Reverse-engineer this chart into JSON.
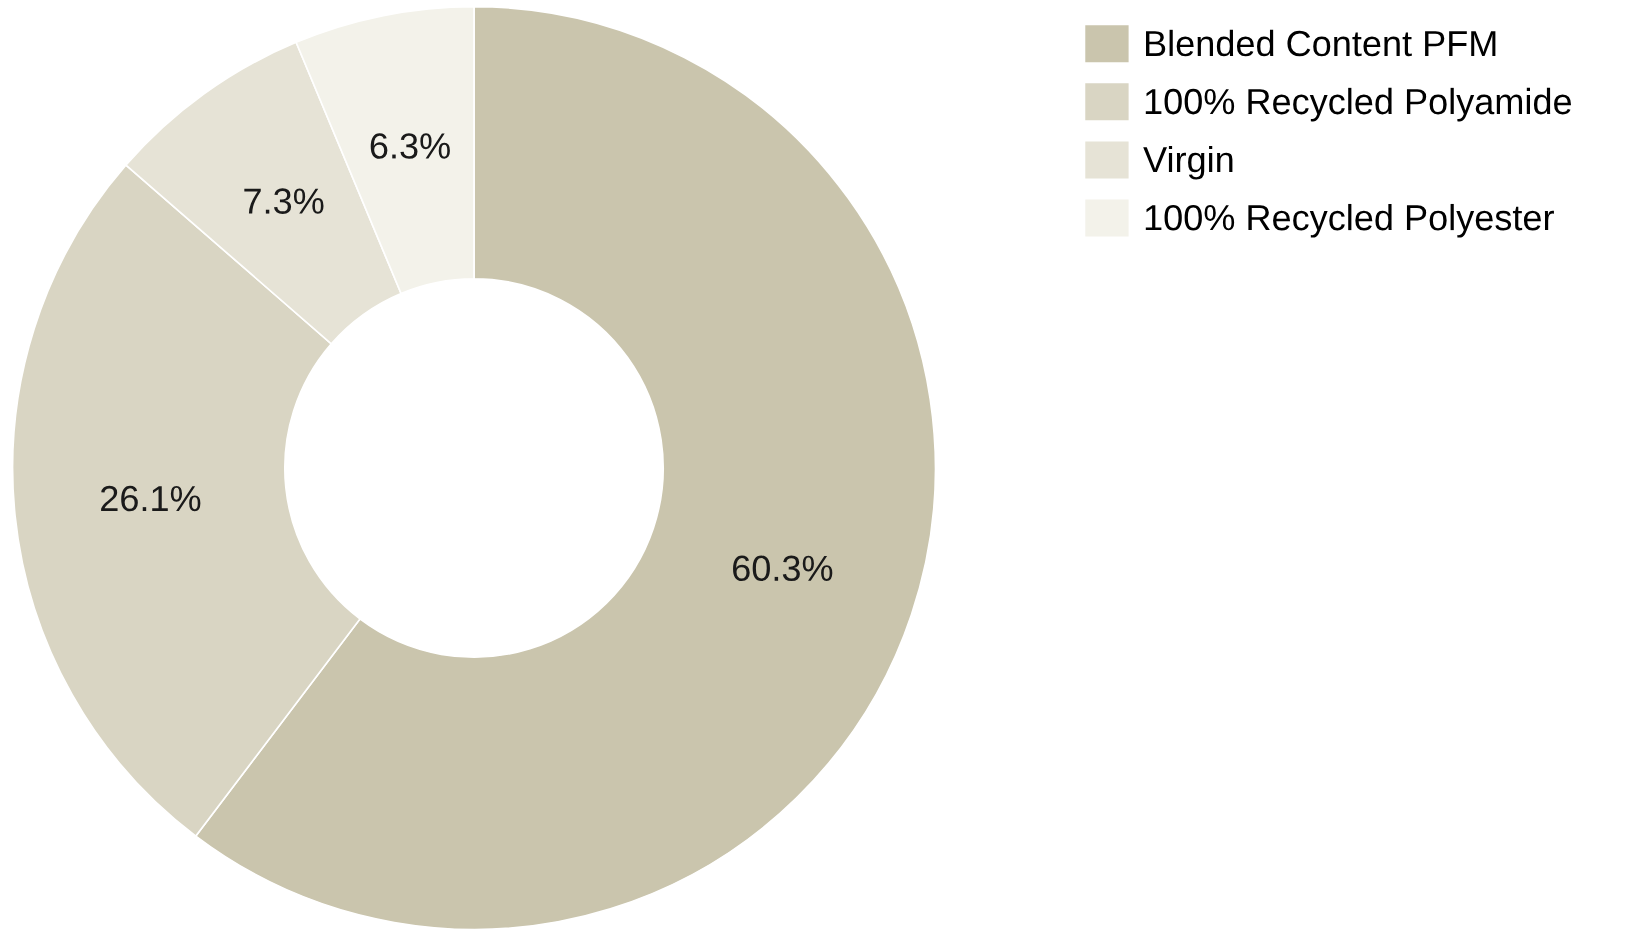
{
  "chart_data": {
    "type": "donut",
    "categories": [
      "Blended Content PFM",
      "100% Recycled Polyamide",
      "Virgin",
      "100% Recycled Polyester"
    ],
    "values": [
      60.3,
      26.1,
      7.3,
      6.3
    ],
    "colors": [
      "#cac5ad",
      "#d9d5c3",
      "#e6e3d6",
      "#f3f2ea"
    ],
    "value_labels": [
      "60.3%",
      "26.1%",
      "7.3%",
      "6.3%"
    ],
    "legend": "right"
  }
}
